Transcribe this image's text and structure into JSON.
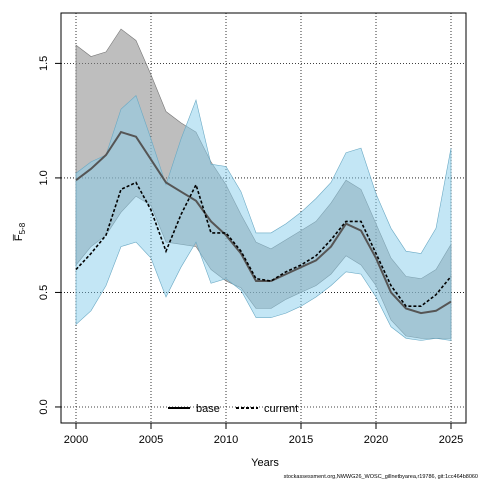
{
  "chart_data": {
    "type": "line",
    "xlabel": "Years",
    "ylabel": "F̅",
    "ylabel_subscript": "5-8",
    "xlim": [
      1999,
      2026
    ],
    "ylim": [
      -0.07,
      1.72
    ],
    "x_ticks": [
      2000,
      2005,
      2010,
      2015,
      2020,
      2025
    ],
    "y_ticks": [
      0.0,
      0.5,
      1.0,
      1.5
    ],
    "y_tick_labels": [
      "0.0",
      "0.5",
      "1.0",
      "1.5"
    ],
    "grid": true,
    "legend_placement": "bottom-center",
    "legend": [
      {
        "label": "base",
        "style": "solid"
      },
      {
        "label": "current",
        "style": "dashed"
      }
    ],
    "footnote": "stockassessment.org,NWWG26_WOSC_gillnetbyarea,r19786, git:1cc464b8060",
    "x": [
      2000,
      2001,
      2002,
      2003,
      2004,
      2005,
      2006,
      2007,
      2008,
      2009,
      2010,
      2011,
      2012,
      2013,
      2014,
      2015,
      2016,
      2017,
      2018,
      2019,
      2020,
      2021,
      2022,
      2023,
      2024,
      2025
    ],
    "series": [
      {
        "name": "base",
        "line_color": "#555555",
        "band_color": "#888888",
        "values": [
          0.99,
          1.04,
          1.1,
          1.2,
          1.18,
          1.08,
          0.98,
          0.94,
          0.9,
          0.81,
          0.75,
          0.67,
          0.55,
          0.55,
          0.58,
          0.61,
          0.64,
          0.7,
          0.8,
          0.77,
          0.65,
          0.5,
          0.43,
          0.41,
          0.42,
          0.46
        ],
        "lower": [
          0.62,
          0.7,
          0.75,
          0.85,
          0.92,
          0.88,
          0.72,
          0.71,
          0.7,
          0.6,
          0.55,
          0.52,
          0.43,
          0.43,
          0.47,
          0.5,
          0.53,
          0.58,
          0.66,
          0.62,
          0.53,
          0.38,
          0.31,
          0.3,
          0.3,
          0.3
        ],
        "upper": [
          1.58,
          1.53,
          1.55,
          1.65,
          1.6,
          1.45,
          1.29,
          1.24,
          1.2,
          1.07,
          0.97,
          0.84,
          0.72,
          0.69,
          0.73,
          0.77,
          0.81,
          0.89,
          0.99,
          0.95,
          0.8,
          0.65,
          0.57,
          0.56,
          0.6,
          0.71
        ]
      },
      {
        "name": "current",
        "line_color": "#000000",
        "band_color": "#87CEEB",
        "values": [
          0.6,
          0.67,
          0.75,
          0.95,
          0.98,
          0.86,
          0.68,
          0.84,
          0.97,
          0.76,
          0.76,
          0.68,
          0.56,
          0.55,
          0.59,
          0.62,
          0.66,
          0.73,
          0.81,
          0.81,
          0.67,
          0.53,
          0.44,
          0.44,
          0.49,
          0.57
        ],
        "lower": [
          0.36,
          0.42,
          0.53,
          0.7,
          0.72,
          0.65,
          0.48,
          0.61,
          0.72,
          0.54,
          0.56,
          0.51,
          0.39,
          0.39,
          0.41,
          0.44,
          0.48,
          0.53,
          0.59,
          0.58,
          0.48,
          0.35,
          0.3,
          0.29,
          0.3,
          0.29
        ],
        "upper": [
          1.02,
          1.07,
          1.1,
          1.3,
          1.36,
          1.17,
          0.97,
          1.17,
          1.34,
          1.06,
          1.05,
          0.94,
          0.76,
          0.76,
          0.8,
          0.85,
          0.91,
          0.98,
          1.11,
          1.13,
          0.93,
          0.78,
          0.68,
          0.67,
          0.78,
          1.13
        ]
      }
    ]
  }
}
